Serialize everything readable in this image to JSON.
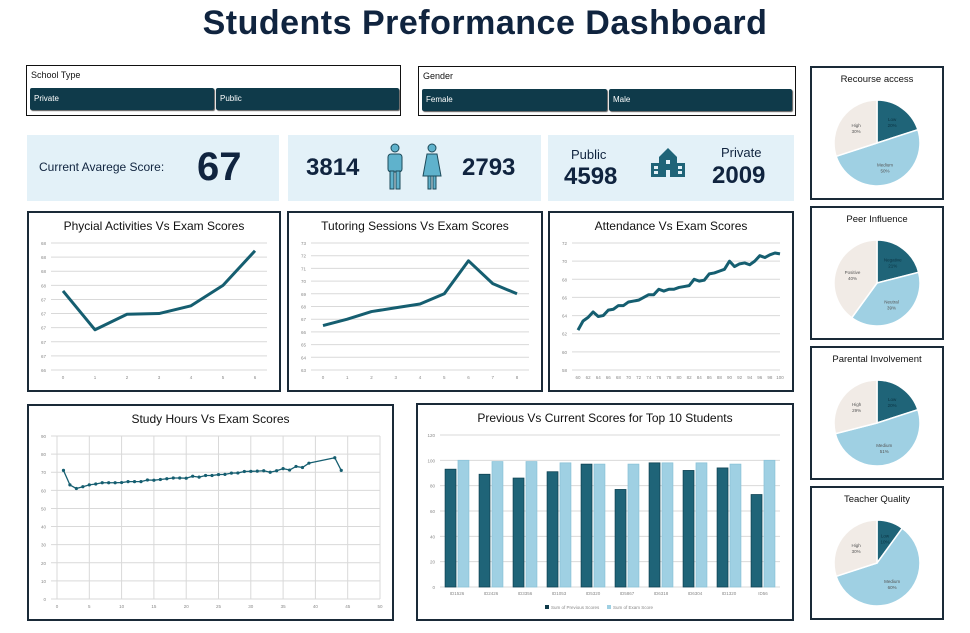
{
  "title": "Students Preformance Dashboard",
  "filters": {
    "school_type": {
      "label": "School Type",
      "options": [
        "Private",
        "Public"
      ]
    },
    "gender": {
      "label": "Gender",
      "options": [
        "Female",
        "Male"
      ]
    }
  },
  "kpis": {
    "avg_label": "Current Avarege Score:",
    "avg_value": "67",
    "male_count": "3814",
    "female_count": "2793",
    "public_label": "Public",
    "public_count": "4598",
    "private_label": "Private",
    "private_count": "2009"
  },
  "colors": {
    "dark": "#1f6478",
    "light": "#9fd0e3",
    "beige": "#f1ebe6",
    "card": "#e3f1f8"
  },
  "chart_data": [
    {
      "id": "physical",
      "type": "line",
      "title": "Phycial Activities Vs Exam Scores",
      "x": [
        0,
        1,
        2,
        3,
        4,
        5,
        6
      ],
      "values": [
        67.52,
        66.97,
        67.19,
        67.2,
        67.31,
        67.6,
        68.09
      ],
      "ylim": [
        66.4,
        68.2
      ],
      "ystep": 0.2,
      "ydecimals": 0,
      "xticks": [
        0,
        1,
        2,
        3,
        4,
        5,
        6
      ]
    },
    {
      "id": "tutoring",
      "type": "line",
      "title": "Tutoring Sessions Vs Exam Scores",
      "x": [
        0,
        1,
        2,
        3,
        4,
        5,
        6,
        7,
        8
      ],
      "values": [
        66.5,
        67.0,
        67.6,
        67.9,
        68.2,
        69.0,
        71.6,
        69.8,
        69.0
      ],
      "ylim": [
        63,
        73
      ],
      "ystep": 1,
      "ydecimals": 0,
      "xticks": [
        0,
        1,
        2,
        3,
        4,
        5,
        6,
        7,
        8
      ]
    },
    {
      "id": "attendance",
      "type": "line",
      "title": "Attendance Vs Exam Scores",
      "x": [
        60,
        61,
        62,
        63,
        64,
        65,
        66,
        67,
        68,
        69,
        70,
        71,
        72,
        73,
        74,
        75,
        76,
        77,
        78,
        79,
        80,
        81,
        82,
        83,
        84,
        85,
        86,
        87,
        88,
        89,
        90,
        91,
        92,
        93,
        94,
        95,
        96,
        97,
        98,
        99,
        100
      ],
      "values": [
        62.4,
        63.4,
        63.8,
        64.4,
        63.9,
        64.0,
        64.6,
        64.7,
        65.1,
        65.1,
        65.5,
        65.6,
        65.7,
        66.0,
        66.3,
        66.3,
        66.9,
        66.7,
        66.9,
        66.9,
        67.1,
        67.2,
        67.3,
        68.0,
        67.8,
        67.9,
        68.6,
        68.7,
        68.9,
        69.1,
        70.0,
        69.4,
        69.7,
        69.8,
        69.6,
        70.0,
        70.6,
        70.4,
        70.7,
        70.9,
        70.8
      ],
      "ylim": [
        58,
        72
      ],
      "ystep": 2,
      "ydecimals": 0,
      "xticks": [
        60,
        62,
        64,
        66,
        68,
        70,
        72,
        74,
        76,
        78,
        80,
        82,
        84,
        86,
        88,
        90,
        92,
        94,
        96,
        98,
        100
      ],
      "xlim": [
        60,
        100
      ]
    },
    {
      "id": "study",
      "type": "line",
      "title": "Study Hours Vs Exam Scores",
      "x": [
        1,
        2,
        3,
        4,
        5,
        6,
        7,
        8,
        9,
        10,
        11,
        12,
        13,
        14,
        15,
        16,
        17,
        18,
        19,
        20,
        21,
        22,
        23,
        24,
        25,
        26,
        27,
        28,
        29,
        30,
        31,
        32,
        33,
        34,
        35,
        36,
        37,
        38,
        39,
        43,
        44
      ],
      "values": [
        71,
        63,
        61,
        62,
        63,
        63.5,
        64.2,
        64.2,
        64.2,
        64.3,
        64.8,
        64.8,
        64.8,
        65.7,
        65.6,
        66,
        66.4,
        66.8,
        66.8,
        66.7,
        67.8,
        67.3,
        68.2,
        68.2,
        68.7,
        68.8,
        69.5,
        69.6,
        70.4,
        70.5,
        70.6,
        70.8,
        70,
        70.8,
        72,
        71.2,
        73.2,
        72.6,
        75,
        78,
        71
      ],
      "ylim": [
        0,
        90
      ],
      "ystep": 10,
      "ydecimals": 0,
      "xticks": [
        0,
        5,
        10,
        15,
        20,
        25,
        30,
        35,
        40,
        45,
        50
      ],
      "xlim": [
        0,
        50
      ],
      "markers": true,
      "vgrid": true
    },
    {
      "id": "top10",
      "type": "bar",
      "title": "Previous Vs Current Scores for Top 10 Students",
      "categories": [
        "ID1526",
        "ID2426",
        "ID3356",
        "ID1053",
        "ID5320",
        "ID5867",
        "ID6318",
        "ID6304",
        "ID1320",
        "ID56"
      ],
      "series": [
        {
          "name": "Sum of Previous Scores",
          "values": [
            93,
            89,
            86,
            91,
            97,
            77,
            98,
            92,
            94,
            73
          ]
        },
        {
          "name": "Sum of Exam Score",
          "values": [
            100,
            99,
            99,
            98,
            97,
            97,
            98,
            98,
            97,
            100
          ]
        }
      ],
      "ylim": [
        0,
        120
      ],
      "ystep": 20,
      "legend": "bottom"
    },
    {
      "id": "resource",
      "type": "pie",
      "title": "Recourse access",
      "slices": [
        {
          "label": "Low",
          "value": 20
        },
        {
          "label": "Medium",
          "value": 50
        },
        {
          "label": "High",
          "value": 30
        }
      ]
    },
    {
      "id": "peer",
      "type": "pie",
      "title": "Peer Influence",
      "slices": [
        {
          "label": "Negative",
          "value": 21
        },
        {
          "label": "Neutral",
          "value": 39
        },
        {
          "label": "Positive",
          "value": 40
        }
      ]
    },
    {
      "id": "parental",
      "type": "pie",
      "title": "Parental Involvement",
      "slices": [
        {
          "label": "Low",
          "value": 20
        },
        {
          "label": "Medium",
          "value": 51
        },
        {
          "label": "High",
          "value": 29
        }
      ]
    },
    {
      "id": "teacher",
      "type": "pie",
      "title": "Teacher Quality",
      "slices": [
        {
          "label": "Low",
          "value": 10
        },
        {
          "label": "Medium",
          "value": 60
        },
        {
          "label": "High",
          "value": 30
        }
      ]
    }
  ]
}
